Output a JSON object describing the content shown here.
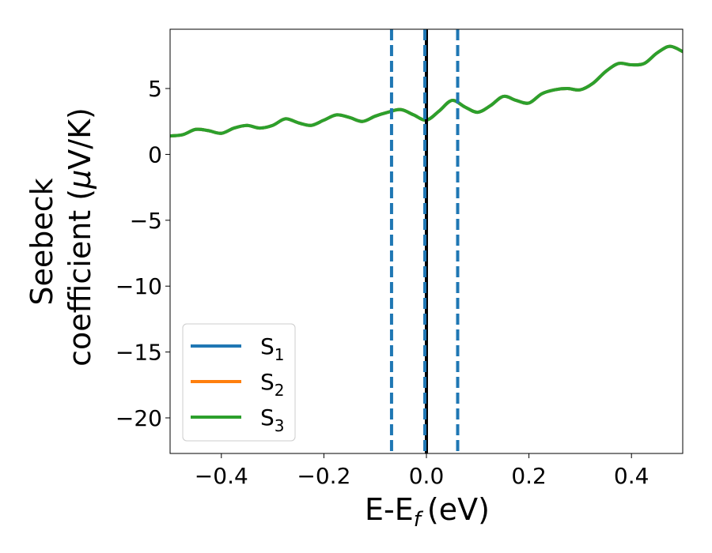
{
  "chart_data": {
    "type": "line",
    "xlabel": "E-E",
    "xlabel_sub": "f",
    "xlabel_unit": "(eV)",
    "ylabel_line1": "Seebeck",
    "ylabel_line2": "coefficient  (",
    "ylabel_mu": "μ",
    "ylabel_unit": "V/K)",
    "xlim": [
      -0.5,
      0.5
    ],
    "ylim": [
      -22.7,
      9.5
    ],
    "xticks": [
      -0.4,
      -0.2,
      0.0,
      0.2,
      0.4
    ],
    "xtick_labels": [
      "−0.4",
      "−0.2",
      "0.0",
      "0.2",
      "0.4"
    ],
    "yticks": [
      5,
      0,
      -5,
      -10,
      -15,
      -20
    ],
    "ytick_labels": [
      "5",
      "0",
      "−5",
      "−10",
      "−15",
      "−20"
    ],
    "legend_position": "lower-left",
    "grid": false,
    "series": [
      {
        "name": "S",
        "sub": "1",
        "color": "#1f77b4",
        "x": [
          -0.5,
          -0.475,
          -0.45,
          -0.425,
          -0.4,
          -0.375,
          -0.35,
          -0.325,
          -0.3,
          -0.275,
          -0.25,
          -0.225,
          -0.2,
          -0.175,
          -0.15,
          -0.125,
          -0.1,
          -0.075,
          -0.05,
          -0.025,
          0.0,
          0.025,
          0.05,
          0.075,
          0.1,
          0.125,
          0.15,
          0.175,
          0.2,
          0.225,
          0.25,
          0.275,
          0.3,
          0.325,
          0.35,
          0.375,
          0.4,
          0.425,
          0.45,
          0.475,
          0.5
        ],
        "y": [
          1.4,
          1.5,
          1.9,
          1.8,
          1.6,
          2.0,
          2.2,
          2.0,
          2.2,
          2.7,
          2.4,
          2.2,
          2.6,
          3.0,
          2.8,
          2.5,
          2.9,
          3.2,
          3.4,
          3.0,
          2.6,
          3.3,
          4.1,
          3.6,
          3.2,
          3.7,
          4.4,
          4.1,
          3.9,
          4.6,
          4.9,
          5.0,
          4.9,
          5.4,
          6.3,
          6.9,
          6.8,
          6.9,
          7.7,
          8.2,
          7.8
        ]
      },
      {
        "name": "S",
        "sub": "2",
        "color": "#ff7f0e",
        "x": [
          -0.5,
          -0.475,
          -0.45,
          -0.425,
          -0.4,
          -0.375,
          -0.35,
          -0.325,
          -0.3,
          -0.275,
          -0.25,
          -0.225,
          -0.2,
          -0.175,
          -0.15,
          -0.125,
          -0.1,
          -0.075,
          -0.05,
          -0.025,
          0.0,
          0.025,
          0.05,
          0.075,
          0.1,
          0.125,
          0.15,
          0.175,
          0.2,
          0.225,
          0.25,
          0.275,
          0.3,
          0.325,
          0.35,
          0.375,
          0.4,
          0.425,
          0.45,
          0.475,
          0.5
        ],
        "y": [
          1.4,
          1.5,
          1.9,
          1.8,
          1.6,
          2.0,
          2.2,
          2.0,
          2.2,
          2.7,
          2.4,
          2.2,
          2.6,
          3.0,
          2.8,
          2.5,
          2.9,
          3.2,
          3.4,
          3.0,
          2.6,
          3.3,
          4.1,
          3.6,
          3.2,
          3.7,
          4.4,
          4.1,
          3.9,
          4.6,
          4.9,
          5.0,
          4.9,
          5.4,
          6.3,
          6.9,
          6.8,
          6.9,
          7.7,
          8.2,
          7.8
        ]
      },
      {
        "name": "S",
        "sub": "3",
        "color": "#2ca02c",
        "x": [
          -0.5,
          -0.475,
          -0.45,
          -0.425,
          -0.4,
          -0.375,
          -0.35,
          -0.325,
          -0.3,
          -0.275,
          -0.25,
          -0.225,
          -0.2,
          -0.175,
          -0.15,
          -0.125,
          -0.1,
          -0.075,
          -0.05,
          -0.025,
          0.0,
          0.025,
          0.05,
          0.075,
          0.1,
          0.125,
          0.15,
          0.175,
          0.2,
          0.225,
          0.25,
          0.275,
          0.3,
          0.325,
          0.35,
          0.375,
          0.4,
          0.425,
          0.45,
          0.475,
          0.5
        ],
        "y": [
          1.4,
          1.5,
          1.9,
          1.8,
          1.6,
          2.0,
          2.2,
          2.0,
          2.2,
          2.7,
          2.4,
          2.2,
          2.6,
          3.0,
          2.8,
          2.5,
          2.9,
          3.2,
          3.4,
          3.0,
          2.6,
          3.3,
          4.1,
          3.6,
          3.2,
          3.7,
          4.4,
          4.1,
          3.9,
          4.6,
          4.9,
          5.0,
          4.9,
          5.4,
          6.3,
          6.9,
          6.8,
          6.9,
          7.7,
          8.2,
          7.8
        ]
      }
    ],
    "vlines": [
      {
        "x": -0.068,
        "color": "#1f77b4",
        "style": "dashed"
      },
      {
        "x": 0.0,
        "color": "#000000",
        "style": "solid"
      },
      {
        "x": -0.003,
        "color": "#1f77b4",
        "style": "dashed"
      },
      {
        "x": 0.061,
        "color": "#1f77b4",
        "style": "dashed"
      }
    ]
  }
}
